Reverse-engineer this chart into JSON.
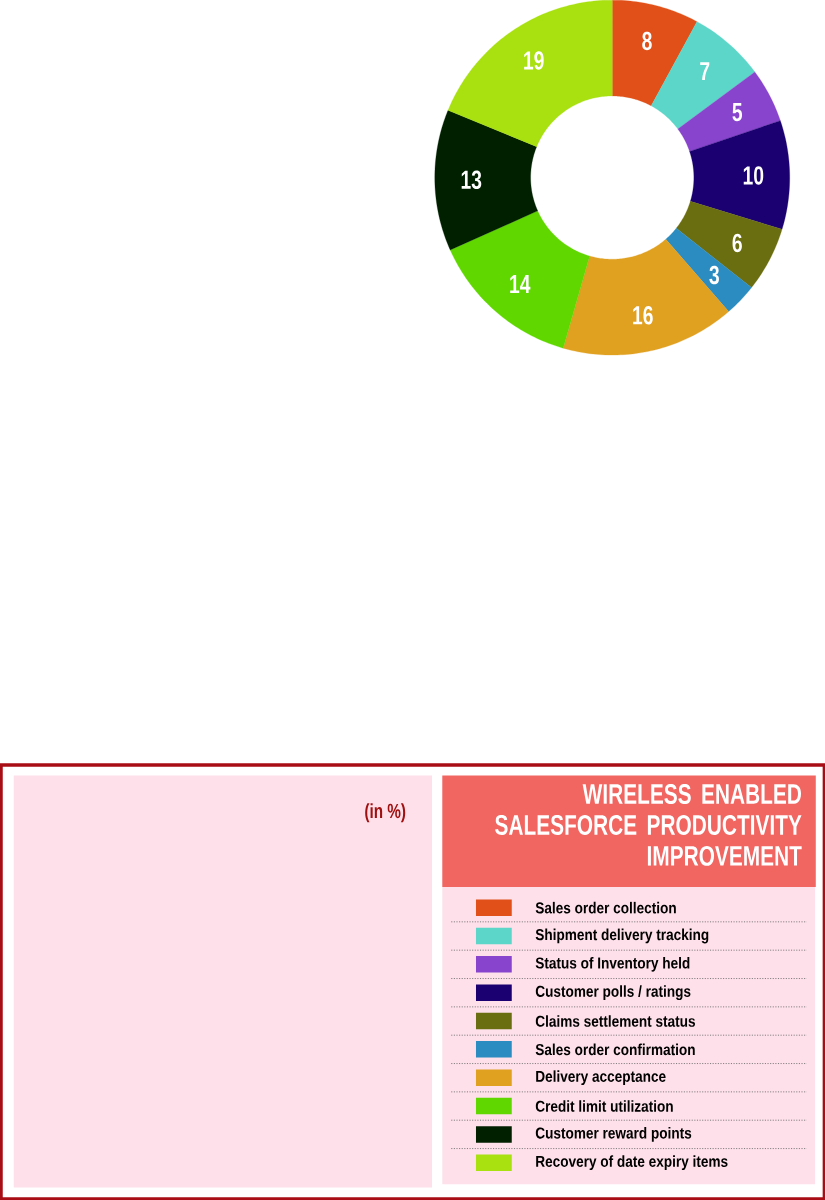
{
  "chart_data": {
    "type": "donut",
    "title": "WIRELESS ENABLED SALESFORCE PRODUCTIVITY IMPROVEMENT",
    "annotations": [
      "(in %)"
    ],
    "categories": [
      "Sales order collection",
      "Shipment delivery tracking",
      "Status of Inventory held",
      "Customer polls / ratings",
      "Claims settlement status",
      "Sales order confirmation",
      "Delivery acceptance",
      "Credit limit utilization",
      "Customer reward points",
      "Recovery of date expiry items"
    ],
    "values": [
      8,
      7,
      5,
      10,
      6,
      3,
      16,
      14,
      13,
      19
    ],
    "colors": [
      "#e05018",
      "#5cd6c8",
      "#8844cc",
      "#1a0070",
      "#6b6e10",
      "#2a8cc0",
      "#e0a020",
      "#60d800",
      "#002000",
      "#a8e010"
    ],
    "data_labels": true,
    "legend": "right"
  }
}
